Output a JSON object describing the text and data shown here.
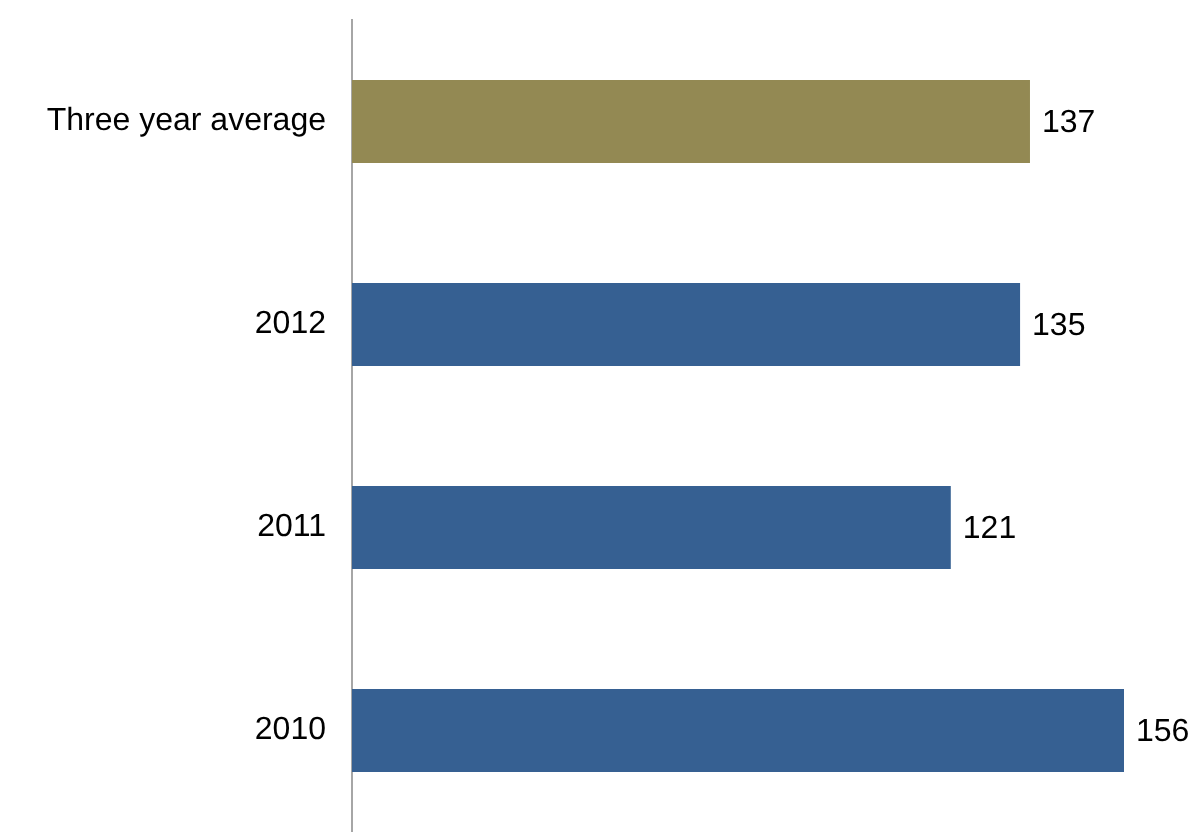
{
  "chart_data": {
    "type": "bar",
    "orientation": "horizontal",
    "categories": [
      "Three year average",
      "2012",
      "2011",
      "2010"
    ],
    "values": [
      137,
      135,
      121,
      156
    ],
    "colors": [
      "#938953",
      "#366092",
      "#366092",
      "#366092"
    ],
    "data_labels": true
  }
}
